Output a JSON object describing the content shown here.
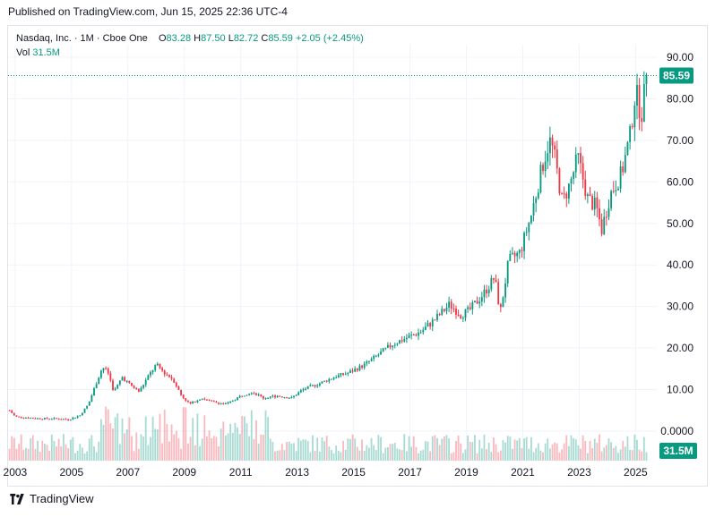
{
  "published": "Published on TradingView.com, Jun 15, 2025 22:36 UTC-4",
  "legend": {
    "symbol": "Nasdaq, Inc. · 1M · Cboe One",
    "open_label": "O",
    "open": "83.28",
    "high_label": "H",
    "high": "87.50",
    "low_label": "L",
    "low": "82.72",
    "close_label": "C",
    "close": "85.59",
    "change": "+2.05 (+2.45%)",
    "vol_label": "Vol",
    "vol": "31.5M"
  },
  "footer": {
    "brand": "TradingView"
  },
  "colors": {
    "up": "#089981",
    "down": "#f23645",
    "last_price_bg": "#089981",
    "grid": "#f0f3fa"
  },
  "chart_data": {
    "type": "candlestick",
    "title": "Nasdaq, Inc. · 1M · Cboe One",
    "interval": "1M",
    "price_axis": {
      "ticks": [
        "90.00",
        "80.00",
        "70.00",
        "60.00",
        "50.00",
        "40.00",
        "30.00",
        "20.00",
        "10.00",
        "0.0000"
      ],
      "range": [
        -2.5,
        92
      ]
    },
    "time_axis": {
      "ticks": [
        "2003",
        "2005",
        "2007",
        "2009",
        "2011",
        "2013",
        "2015",
        "2017",
        "2019",
        "2021",
        "2023",
        "2025"
      ],
      "range": [
        2002.75,
        2025.75
      ]
    },
    "last_price": {
      "value": 85.59,
      "label": "85.59"
    },
    "last_volume": {
      "value": 31.5,
      "label": "31.5M"
    },
    "price_path": [
      [
        2002.8,
        5.0
      ],
      [
        2003.0,
        3.5
      ],
      [
        2003.5,
        3.2
      ],
      [
        2004.0,
        3.0
      ],
      [
        2004.5,
        3.0
      ],
      [
        2004.9,
        2.8
      ],
      [
        2005.3,
        3.8
      ],
      [
        2005.6,
        6.5
      ],
      [
        2005.9,
        12.0
      ],
      [
        2006.1,
        15.5
      ],
      [
        2006.3,
        14.0
      ],
      [
        2006.5,
        9.5
      ],
      [
        2006.8,
        13.0
      ],
      [
        2007.1,
        11.0
      ],
      [
        2007.4,
        9.5
      ],
      [
        2007.7,
        13.0
      ],
      [
        2008.0,
        16.0
      ],
      [
        2008.3,
        14.0
      ],
      [
        2008.6,
        12.5
      ],
      [
        2008.9,
        8.5
      ],
      [
        2009.2,
        6.5
      ],
      [
        2009.6,
        8.0
      ],
      [
        2010.0,
        7.0
      ],
      [
        2010.5,
        6.5
      ],
      [
        2011.0,
        8.5
      ],
      [
        2011.4,
        9.5
      ],
      [
        2011.8,
        8.0
      ],
      [
        2012.3,
        8.5
      ],
      [
        2012.8,
        8.0
      ],
      [
        2013.2,
        10.0
      ],
      [
        2013.8,
        11.5
      ],
      [
        2014.3,
        13.0
      ],
      [
        2014.8,
        14.0
      ],
      [
        2015.4,
        16.0
      ],
      [
        2015.9,
        18.5
      ],
      [
        2016.4,
        21.0
      ],
      [
        2016.9,
        22.5
      ],
      [
        2017.4,
        24.0
      ],
      [
        2017.9,
        27.0
      ],
      [
        2018.4,
        30.5
      ],
      [
        2018.8,
        28.0
      ],
      [
        2019.1,
        29.0
      ],
      [
        2019.6,
        33.0
      ],
      [
        2020.0,
        37.0
      ],
      [
        2020.2,
        28.5
      ],
      [
        2020.5,
        41.0
      ],
      [
        2020.9,
        43.0
      ],
      [
        2021.3,
        52.0
      ],
      [
        2021.7,
        64.0
      ],
      [
        2021.95,
        70.0
      ],
      [
        2022.1,
        67.0
      ],
      [
        2022.4,
        55.0
      ],
      [
        2022.7,
        60.0
      ],
      [
        2022.95,
        66.0
      ],
      [
        2023.3,
        56.0
      ],
      [
        2023.6,
        54.0
      ],
      [
        2023.8,
        48.5
      ],
      [
        2024.1,
        57.0
      ],
      [
        2024.5,
        62.0
      ],
      [
        2024.8,
        71.0
      ],
      [
        2025.0,
        82.0
      ],
      [
        2025.2,
        76.0
      ],
      [
        2025.4,
        85.59
      ]
    ],
    "candle_step_months": 1,
    "volume_series": "monthly volume bars (unlabeled)"
  }
}
